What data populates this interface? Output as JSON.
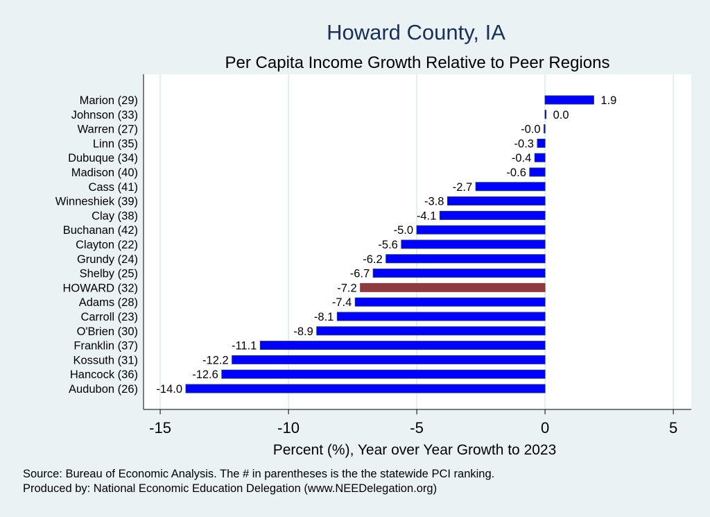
{
  "chart_data": {
    "type": "bar",
    "orientation": "horizontal",
    "title": "Howard County, IA",
    "subtitle": "Per Capita Income Growth Relative to Peer Regions",
    "xlabel": "Percent (%), Year over Year Growth to 2023",
    "ylabel": "",
    "xlim": [
      -15.65,
      5.7
    ],
    "xticks": [
      -15,
      -10,
      -5,
      0,
      5
    ],
    "xtick_labels": [
      "-15",
      "-10",
      "-5",
      "0",
      "5"
    ],
    "grid": true,
    "categories": [
      "Marion (29)",
      "Johnson (33)",
      "Warren (27)",
      "Linn (35)",
      "Dubuque (34)",
      "Madison (40)",
      "Cass (41)",
      "Winneshiek (39)",
      "Clay (38)",
      "Buchanan (42)",
      "Clayton (22)",
      "Grundy (24)",
      "Shelby (25)",
      "HOWARD (32)",
      "Adams (28)",
      "Carroll (23)",
      "O'Brien (30)",
      "Franklin (37)",
      "Kossuth (31)",
      "Hancock (36)",
      "Audubon (26)"
    ],
    "values": [
      1.9,
      0.04,
      -0.04,
      -0.3,
      -0.4,
      -0.6,
      -2.7,
      -3.8,
      -4.1,
      -5.0,
      -5.6,
      -6.2,
      -6.7,
      -7.2,
      -7.4,
      -8.1,
      -8.9,
      -11.1,
      -12.2,
      -12.6,
      -14.0
    ],
    "value_labels": [
      "1.9",
      "0.0",
      "-0.0",
      "-0.3",
      "-0.4",
      "-0.6",
      "-2.7",
      "-3.8",
      "-4.1",
      "-5.0",
      "-5.6",
      "-6.2",
      "-6.7",
      "-7.2",
      "-7.4",
      "-8.1",
      "-8.9",
      "-11.1",
      "-12.2",
      "-12.6",
      "-14.0"
    ],
    "highlight": "HOWARD (32)",
    "colors": {
      "bar": "#0000ff",
      "bar_outline": "#1a3570",
      "highlight": "#8f3a3f",
      "title": "#1a2f5a",
      "grid": "#e3eef0",
      "background": "#eaf2f3"
    }
  },
  "footer": {
    "source": "Source: Bureau of Economic Analysis. The # in parentheses is the the statewide PCI ranking.",
    "produced_by": "Produced by: National Economic Education Delegation (www.NEEDelegation.org)"
  }
}
